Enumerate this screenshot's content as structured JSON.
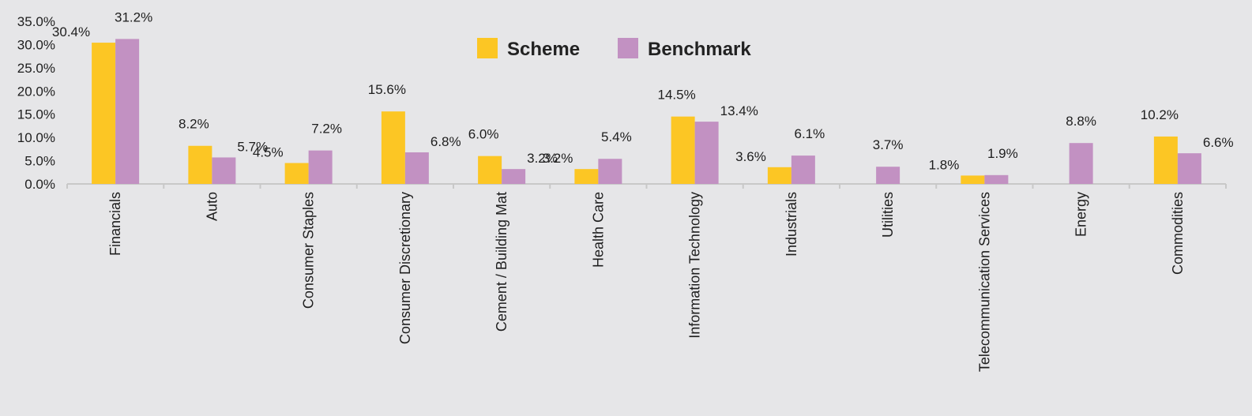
{
  "chart_data": {
    "type": "bar",
    "title": "",
    "xlabel": "",
    "ylabel": "",
    "ylim": [
      0,
      35
    ],
    "yticks": [
      "0.0%",
      "5.0%",
      "10.0%",
      "15.0%",
      "20.0%",
      "25.0%",
      "30.0%",
      "35.0%"
    ],
    "grid": false,
    "legend_position": "top-center",
    "categories": [
      "Financials",
      "Auto",
      "Consumer Staples",
      "Consumer Discretionary",
      "Cement / Building Mat",
      "Health Care",
      "Information Technology",
      "Industrials",
      "Utilities",
      "Telecommunication Services",
      "Energy",
      "Commodities"
    ],
    "series": [
      {
        "name": "Scheme",
        "color": "#fcc624",
        "values": [
          30.4,
          8.2,
          4.5,
          15.6,
          6.0,
          3.2,
          14.5,
          3.6,
          null,
          1.8,
          null,
          10.2
        ],
        "labels": [
          "30.4%",
          "8.2%",
          "4.5%",
          "15.6%",
          "6.0%",
          "3.2%",
          "14.5%",
          "3.6%",
          null,
          "1.8%",
          null,
          "10.2%"
        ]
      },
      {
        "name": "Benchmark",
        "color": "#c291c2",
        "values": [
          31.2,
          5.7,
          7.2,
          6.8,
          3.2,
          5.4,
          13.4,
          6.1,
          3.7,
          1.9,
          8.8,
          6.6
        ],
        "labels": [
          "31.2%",
          "5.7%",
          "7.2%",
          "6.8%",
          "3.2%",
          "5.4%",
          "13.4%",
          "6.1%",
          "3.7%",
          "1.9%",
          "8.8%",
          "6.6%"
        ]
      }
    ],
    "axis_color": "#c8c8c8"
  }
}
